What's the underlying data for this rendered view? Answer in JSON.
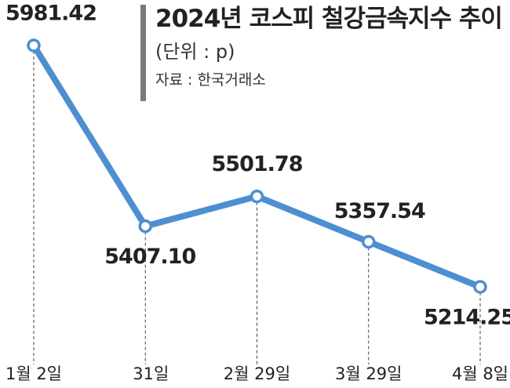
{
  "chart_data": {
    "type": "line",
    "title": "2024년 코스피 철강금속지수 추이",
    "subtitle": "(단위 : p)",
    "source": "자료 : 한국거래소",
    "categories": [
      "1월 2일",
      "31일",
      "2월 29일",
      "3월 29일",
      "4월 8일"
    ],
    "series": [
      {
        "color": "#4d8fd1",
        "values": [
          5981.42,
          5407.1,
          5501.78,
          5357.54,
          5214.25
        ],
        "value_labels": [
          "5981.42",
          "5407.10",
          "5501.78",
          "5357.54",
          "5214.25"
        ]
      }
    ]
  }
}
